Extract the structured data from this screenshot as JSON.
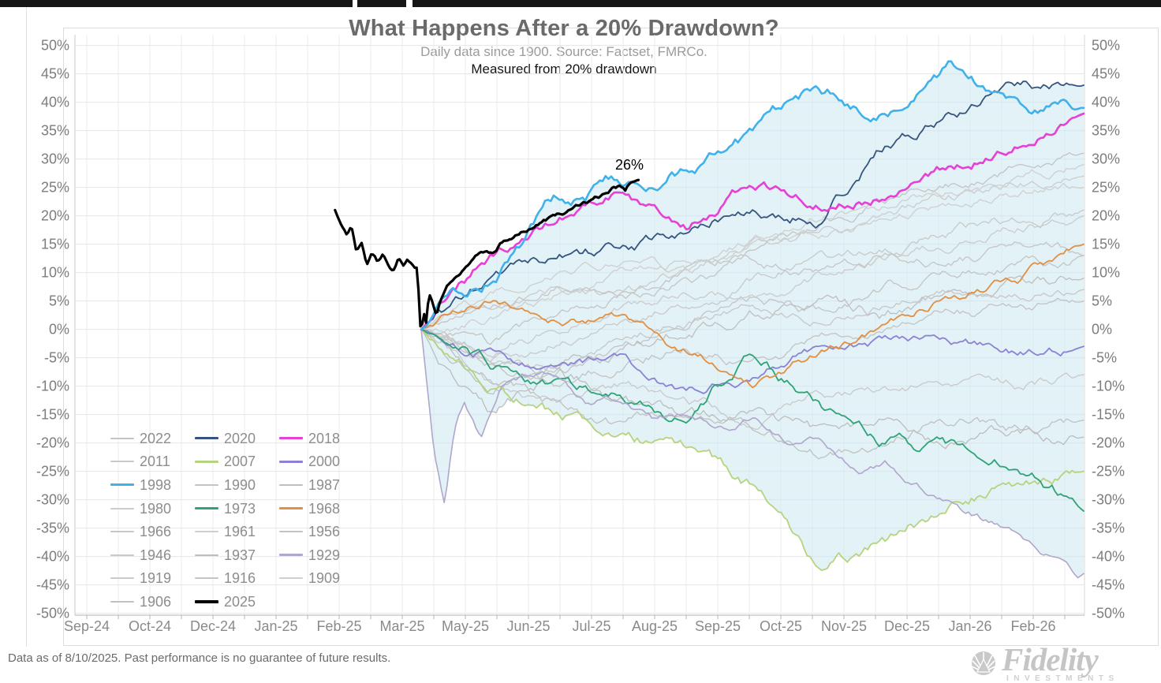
{
  "chart_data": {
    "type": "line",
    "title": "What Happens After a 20% Drawdown?",
    "subtitle": "Daily data since 1900.  Source: Factset, FMRCo.",
    "note": "Measured from 20% drawdown",
    "annotation": {
      "text": "26%",
      "series": "2025",
      "value_pct": 26
    },
    "x_axis": {
      "labels": [
        "Sep-24",
        "Oct-24",
        "Dec-24",
        "Jan-25",
        "Feb-25",
        "Mar-25",
        "May-25",
        "Jun-25",
        "Jul-25",
        "Aug-25",
        "Sep-25",
        "Oct-25",
        "Nov-25",
        "Dec-25",
        "Jan-26",
        "Feb-26"
      ]
    },
    "y_axis": {
      "min": -50,
      "max": 50,
      "step": 5,
      "unit": "%",
      "labels_on_both_sides": true,
      "grid": true
    },
    "band_fill_color": "rgba(197,230,240,0.5)",
    "series": [
      {
        "name": "2022",
        "class": "gray",
        "color": "#c4c4c4",
        "width": 1.3,
        "volatility": 1.2,
        "monthly_pct": [
          0,
          -5,
          -8,
          -3,
          2,
          5,
          3,
          7,
          10,
          12,
          13
        ]
      },
      {
        "name": "2011",
        "class": "gray",
        "color": "#c9c9c9",
        "width": 1.3,
        "volatility": 1.2,
        "monthly_pct": [
          0,
          -6,
          -2,
          1,
          5,
          9,
          12,
          14,
          17,
          19,
          21
        ]
      },
      {
        "name": "1990",
        "class": "gray",
        "color": "#c4c4c4",
        "width": 1.3,
        "volatility": 1.1,
        "monthly_pct": [
          0,
          -3,
          2,
          6,
          10,
          14,
          18,
          22,
          25,
          28,
          31
        ]
      },
      {
        "name": "1987",
        "class": "gray",
        "color": "#bfbfbf",
        "width": 1.3,
        "volatility": 1.4,
        "monthly_pct": [
          0,
          -12,
          -6,
          -4,
          0,
          3,
          5,
          2,
          6,
          8,
          9
        ]
      },
      {
        "name": "1980",
        "class": "gray",
        "color": "#cccccc",
        "width": 1.3,
        "volatility": 1.2,
        "monthly_pct": [
          0,
          3,
          7,
          5,
          10,
          14,
          17,
          20,
          23,
          25,
          27
        ]
      },
      {
        "name": "1966",
        "class": "gray",
        "color": "#c7c7c7",
        "width": 1.3,
        "volatility": 1.1,
        "monthly_pct": [
          0,
          -4,
          -7,
          -2,
          1,
          4,
          2,
          5,
          7,
          6,
          7
        ]
      },
      {
        "name": "1961",
        "class": "gray",
        "color": "#cfcfcf",
        "width": 1.3,
        "volatility": 1.1,
        "monthly_pct": [
          0,
          2,
          6,
          10,
          13,
          16,
          19,
          22,
          25,
          27,
          29
        ]
      },
      {
        "name": "1956",
        "class": "gray",
        "color": "#c3c3c3",
        "width": 1.3,
        "volatility": 1.2,
        "monthly_pct": [
          0,
          -5,
          -9,
          -6,
          -3,
          -6,
          -2,
          1,
          3,
          4,
          5
        ]
      },
      {
        "name": "1946",
        "class": "gray",
        "color": "#c9c9c9",
        "width": 1.3,
        "volatility": 1.2,
        "monthly_pct": [
          0,
          -9,
          -14,
          -10,
          -13,
          -16,
          -12,
          -10,
          -9,
          -10,
          -8
        ]
      },
      {
        "name": "1937",
        "class": "gray",
        "color": "#bdbdbd",
        "width": 1.3,
        "volatility": 1.4,
        "monthly_pct": [
          0,
          -14,
          -8,
          -12,
          -16,
          -14,
          -18,
          -16,
          -20,
          -18,
          -19
        ]
      },
      {
        "name": "1919",
        "class": "gray",
        "color": "#cbcbcb",
        "width": 1.3,
        "volatility": 1.1,
        "monthly_pct": [
          0,
          -4,
          0,
          4,
          7,
          5,
          9,
          12,
          15,
          18,
          20
        ]
      },
      {
        "name": "1916",
        "class": "gray",
        "color": "#c5c5c5",
        "width": 1.3,
        "volatility": 1.2,
        "monthly_pct": [
          0,
          4,
          8,
          5,
          9,
          12,
          10,
          13,
          11,
          14,
          13
        ]
      },
      {
        "name": "1909",
        "class": "gray",
        "color": "#cfcfcf",
        "width": 1.3,
        "volatility": 1.1,
        "monthly_pct": [
          0,
          5,
          9,
          12,
          10,
          14,
          17,
          20,
          22,
          24,
          25
        ]
      },
      {
        "name": "1906",
        "class": "gray",
        "color": "#c1c1c1",
        "width": 1.3,
        "volatility": 1.3,
        "monthly_pct": [
          0,
          -8,
          -13,
          -17,
          -14,
          -18,
          -22,
          -19,
          -16,
          -18,
          -16
        ]
      },
      {
        "name": "2020",
        "class": "color",
        "color": "#35547e",
        "width": 1.8,
        "volatility": 1.4,
        "monthly_pct": [
          0,
          8,
          13,
          14,
          17,
          22,
          20,
          32,
          38,
          43,
          43
        ]
      },
      {
        "name": "2007",
        "class": "color",
        "color": "#b6d37e",
        "width": 1.8,
        "volatility": 1.5,
        "monthly_pct": [
          0,
          -10,
          -15,
          -18,
          -22,
          -28,
          -42,
          -38,
          -31,
          -27,
          -25
        ]
      },
      {
        "name": "2000",
        "class": "color",
        "color": "#8b82d4",
        "width": 1.8,
        "volatility": 1.1,
        "monthly_pct": [
          0,
          -4,
          -8,
          -6,
          -11,
          -8,
          -3,
          -2,
          -2,
          -4,
          -3
        ]
      },
      {
        "name": "1973",
        "class": "color",
        "color": "#2fa376",
        "width": 1.8,
        "volatility": 1.5,
        "monthly_pct": [
          0,
          -6,
          -9,
          -12,
          -15,
          -4,
          -14,
          -20,
          -21,
          -23,
          -32
        ]
      },
      {
        "name": "1968",
        "class": "color",
        "color": "#e38f41",
        "width": 1.8,
        "volatility": 1.1,
        "monthly_pct": [
          0,
          5,
          1,
          2,
          -4,
          -9,
          -4,
          1,
          6,
          9,
          15
        ]
      },
      {
        "name": "1929",
        "class": "color",
        "color": "#b1a6cb",
        "width": 1.6,
        "volatility": 0.9,
        "points": [
          [
            0,
            0
          ],
          [
            0.2,
            -22
          ],
          [
            0.35,
            -31
          ],
          [
            0.5,
            -18
          ],
          [
            0.65,
            -13
          ],
          [
            0.9,
            -19
          ],
          [
            1.2,
            -11
          ],
          [
            1.6,
            -9
          ],
          [
            2,
            -8
          ],
          [
            2.5,
            -13
          ],
          [
            3,
            -12
          ],
          [
            3.5,
            -16
          ],
          [
            4,
            -15
          ],
          [
            4.6,
            -18
          ],
          [
            5,
            -16
          ],
          [
            5.5,
            -20
          ],
          [
            6,
            -19
          ],
          [
            6.6,
            -24
          ],
          [
            7,
            -23
          ],
          [
            7.6,
            -28
          ],
          [
            8,
            -30
          ],
          [
            8.6,
            -34
          ],
          [
            9,
            -36
          ],
          [
            9.6,
            -41
          ],
          [
            9.9,
            -44
          ],
          [
            10,
            -43
          ]
        ]
      },
      {
        "name": "2018",
        "class": "color",
        "color": "#e640d6",
        "width": 2.6,
        "volatility": 1.3,
        "monthly_pct": [
          0,
          12,
          19,
          24,
          18,
          26,
          23,
          24,
          29,
          33,
          38
        ]
      },
      {
        "name": "1998",
        "class": "color",
        "color": "#41b1ea",
        "width": 2.6,
        "volatility": 1.7,
        "monthly_pct": [
          0,
          9,
          22,
          26,
          29,
          34,
          42,
          38,
          46,
          41,
          39
        ]
      },
      {
        "name": "2025",
        "class": "main",
        "color": "#000000",
        "width": 3.2,
        "volatility": 0.55,
        "points": [
          [
            -1.3,
            21
          ],
          [
            -1.2,
            18
          ],
          [
            -1.12,
            16
          ],
          [
            -1.05,
            17.5
          ],
          [
            -0.98,
            13.5
          ],
          [
            -0.9,
            15
          ],
          [
            -0.82,
            11.5
          ],
          [
            -0.74,
            13.5
          ],
          [
            -0.66,
            12
          ],
          [
            -0.58,
            13.2
          ],
          [
            -0.5,
            11.8
          ],
          [
            -0.42,
            10.3
          ],
          [
            -0.34,
            12.5
          ],
          [
            -0.27,
            11.3
          ],
          [
            -0.2,
            12.2
          ],
          [
            -0.12,
            11
          ],
          [
            -0.06,
            10.5
          ],
          [
            -0.02,
            3
          ],
          [
            0,
            -2.5
          ],
          [
            0.03,
            4
          ],
          [
            0.07,
            0.8
          ],
          [
            0.12,
            6.3
          ],
          [
            0.18,
            4.5
          ],
          [
            0.23,
            2.2
          ],
          [
            0.3,
            5
          ],
          [
            0.38,
            7.2
          ],
          [
            0.5,
            8.8
          ],
          [
            0.65,
            10.8
          ],
          [
            0.8,
            12.8
          ],
          [
            0.95,
            13.6
          ],
          [
            1.1,
            12.8
          ],
          [
            1.25,
            15.3
          ],
          [
            1.4,
            15.8
          ],
          [
            1.55,
            17.2
          ],
          [
            1.7,
            18
          ],
          [
            1.85,
            18.8
          ],
          [
            2,
            19.6
          ],
          [
            2.15,
            20.5
          ],
          [
            2.3,
            21.3
          ],
          [
            2.45,
            22.3
          ],
          [
            2.6,
            23
          ],
          [
            2.75,
            23.8
          ],
          [
            2.9,
            24.8
          ],
          [
            3,
            25.2
          ],
          [
            3.08,
            24.3
          ],
          [
            3.16,
            25.6
          ],
          [
            3.28,
            26.3
          ]
        ]
      }
    ]
  },
  "legend": {
    "items": [
      "2022",
      "2020",
      "2018",
      "2011",
      "2007",
      "2000",
      "1998",
      "1990",
      "1987",
      "1980",
      "1973",
      "1968",
      "1966",
      "1961",
      "1956",
      "1946",
      "1937",
      "1929",
      "1919",
      "1916",
      "1909",
      "1906",
      "2025"
    ]
  },
  "footer": {
    "disclaimer": "Data as of 8/10/2025. Past performance is no guarantee of future results.",
    "logo_text": "Fidelity",
    "logo_subtext": "INVESTMENTS"
  }
}
